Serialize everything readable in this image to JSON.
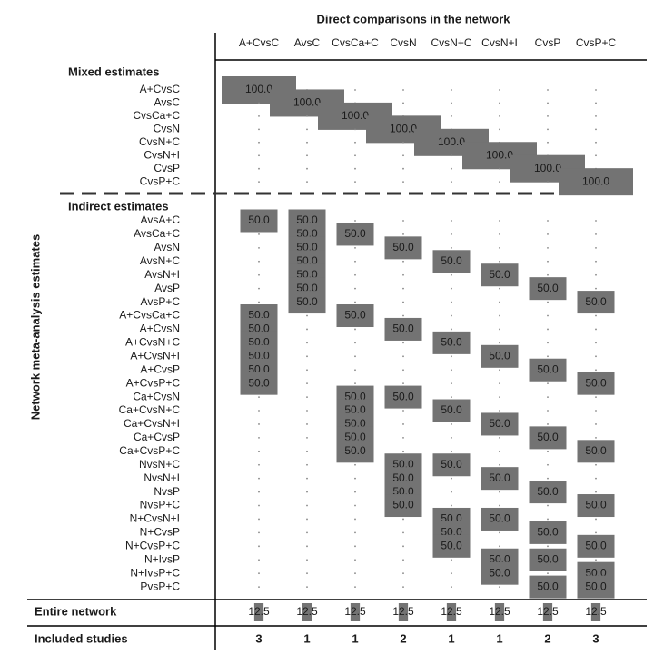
{
  "chart_data": {
    "type": "matrix",
    "title": "Direct comparisons in the network",
    "y_label": "Network meta-analysis estimates",
    "color": "#737373",
    "columns": [
      "A+CvsC",
      "AvsC",
      "CvsCa+C",
      "CvsN",
      "CvsN+C",
      "CvsN+I",
      "CvsP",
      "CvsP+C"
    ],
    "groups": [
      {
        "name": "Mixed estimates",
        "rows": [
          {
            "label": "A+CvsC",
            "values": [
              100,
              0,
              0,
              0,
              0,
              0,
              0,
              0
            ],
            "value_labels": [
              "100.0",
              null,
              null,
              null,
              null,
              null,
              null,
              null
            ]
          },
          {
            "label": "AvsC",
            "values": [
              0,
              100,
              0,
              0,
              0,
              0,
              0,
              0
            ],
            "value_labels": [
              null,
              "100.0",
              null,
              null,
              null,
              null,
              null,
              null
            ]
          },
          {
            "label": "CvsCa+C",
            "values": [
              0,
              0,
              100,
              0,
              0,
              0,
              0,
              0
            ],
            "value_labels": [
              null,
              null,
              "100.0",
              null,
              null,
              null,
              null,
              null
            ]
          },
          {
            "label": "CvsN",
            "values": [
              0,
              0,
              0,
              100,
              0,
              0,
              0,
              0
            ],
            "value_labels": [
              null,
              null,
              null,
              "100.0",
              null,
              null,
              null,
              null
            ]
          },
          {
            "label": "CvsN+C",
            "values": [
              0,
              0,
              0,
              0,
              100,
              0,
              0,
              0
            ],
            "value_labels": [
              null,
              null,
              null,
              null,
              "100.0",
              null,
              null,
              null
            ]
          },
          {
            "label": "CvsN+I",
            "values": [
              0,
              0,
              0,
              0,
              0,
              100,
              0,
              0
            ],
            "value_labels": [
              null,
              null,
              null,
              null,
              null,
              "100.0",
              null,
              null
            ]
          },
          {
            "label": "CvsP",
            "values": [
              0,
              0,
              0,
              0,
              0,
              0,
              100,
              0
            ],
            "value_labels": [
              null,
              null,
              null,
              null,
              null,
              null,
              "100.0",
              null
            ]
          },
          {
            "label": "CvsP+C",
            "values": [
              0,
              0,
              0,
              0,
              0,
              0,
              0,
              100
            ],
            "value_labels": [
              null,
              null,
              null,
              null,
              null,
              null,
              null,
              "100.0"
            ]
          }
        ]
      },
      {
        "name": "Indirect estimates",
        "rows": [
          {
            "label": "AvsA+C",
            "values": [
              50,
              50,
              0,
              0,
              0,
              0,
              0,
              0
            ],
            "value_labels": [
              "50.0",
              "50.0",
              null,
              null,
              null,
              null,
              null,
              null
            ]
          },
          {
            "label": "AvsCa+C",
            "values": [
              0,
              50,
              50,
              0,
              0,
              0,
              0,
              0
            ],
            "value_labels": [
              null,
              "50.0",
              "50.0",
              null,
              null,
              null,
              null,
              null
            ]
          },
          {
            "label": "AvsN",
            "values": [
              0,
              50,
              0,
              50,
              0,
              0,
              0,
              0
            ],
            "value_labels": [
              null,
              "50.0",
              null,
              "50.0",
              null,
              null,
              null,
              null
            ]
          },
          {
            "label": "AvsN+C",
            "values": [
              0,
              50,
              0,
              0,
              50,
              0,
              0,
              0
            ],
            "value_labels": [
              null,
              "50.0",
              null,
              null,
              "50.0",
              null,
              null,
              null
            ]
          },
          {
            "label": "AvsN+I",
            "values": [
              0,
              50,
              0,
              0,
              0,
              50,
              0,
              0
            ],
            "value_labels": [
              null,
              "50.0",
              null,
              null,
              null,
              "50.0",
              null,
              null
            ]
          },
          {
            "label": "AvsP",
            "values": [
              0,
              50,
              0,
              0,
              0,
              0,
              50,
              0
            ],
            "value_labels": [
              null,
              "50.0",
              null,
              null,
              null,
              null,
              "50.0",
              null
            ]
          },
          {
            "label": "AvsP+C",
            "values": [
              0,
              50,
              0,
              0,
              0,
              0,
              0,
              50
            ],
            "value_labels": [
              null,
              "50.0",
              null,
              null,
              null,
              null,
              null,
              "50.0"
            ]
          },
          {
            "label": "A+CvsCa+C",
            "values": [
              50,
              0,
              50,
              0,
              0,
              0,
              0,
              0
            ],
            "value_labels": [
              "50.0",
              null,
              "50.0",
              null,
              null,
              null,
              null,
              null
            ]
          },
          {
            "label": "A+CvsN",
            "values": [
              50,
              0,
              0,
              50,
              0,
              0,
              0,
              0
            ],
            "value_labels": [
              "50.0",
              null,
              null,
              "50.0",
              null,
              null,
              null,
              null
            ]
          },
          {
            "label": "A+CvsN+C",
            "values": [
              50,
              0,
              0,
              0,
              50,
              0,
              0,
              0
            ],
            "value_labels": [
              "50.0",
              null,
              null,
              null,
              "50.0",
              null,
              null,
              null
            ]
          },
          {
            "label": "A+CvsN+I",
            "values": [
              50,
              0,
              0,
              0,
              0,
              50,
              0,
              0
            ],
            "value_labels": [
              "50.0",
              null,
              null,
              null,
              null,
              "50.0",
              null,
              null
            ]
          },
          {
            "label": "A+CvsP",
            "values": [
              50,
              0,
              0,
              0,
              0,
              0,
              50,
              0
            ],
            "value_labels": [
              "50.0",
              null,
              null,
              null,
              null,
              null,
              "50.0",
              null
            ]
          },
          {
            "label": "A+CvsP+C",
            "values": [
              50,
              0,
              0,
              0,
              0,
              0,
              0,
              50
            ],
            "value_labels": [
              "50.0",
              null,
              null,
              null,
              null,
              null,
              null,
              "50.0"
            ]
          },
          {
            "label": "Ca+CvsN",
            "values": [
              0,
              0,
              50,
              50,
              0,
              0,
              0,
              0
            ],
            "value_labels": [
              null,
              null,
              "50.0",
              "50.0",
              null,
              null,
              null,
              null
            ]
          },
          {
            "label": "Ca+CvsN+C",
            "values": [
              0,
              0,
              50,
              0,
              50,
              0,
              0,
              0
            ],
            "value_labels": [
              null,
              null,
              "50.0",
              null,
              "50.0",
              null,
              null,
              null
            ]
          },
          {
            "label": "Ca+CvsN+I",
            "values": [
              0,
              0,
              50,
              0,
              0,
              50,
              0,
              0
            ],
            "value_labels": [
              null,
              null,
              "50.0",
              null,
              null,
              "50.0",
              null,
              null
            ]
          },
          {
            "label": "Ca+CvsP",
            "values": [
              0,
              0,
              50,
              0,
              0,
              0,
              50,
              0
            ],
            "value_labels": [
              null,
              null,
              "50.0",
              null,
              null,
              null,
              "50.0",
              null
            ]
          },
          {
            "label": "Ca+CvsP+C",
            "values": [
              0,
              0,
              50,
              0,
              0,
              0,
              0,
              50
            ],
            "value_labels": [
              null,
              null,
              "50.0",
              null,
              null,
              null,
              null,
              "50.0"
            ]
          },
          {
            "label": "NvsN+C",
            "values": [
              0,
              0,
              0,
              50,
              50,
              0,
              0,
              0
            ],
            "value_labels": [
              null,
              null,
              null,
              "50.0",
              "50.0",
              null,
              null,
              null
            ]
          },
          {
            "label": "NvsN+I",
            "values": [
              0,
              0,
              0,
              50,
              0,
              50,
              0,
              0
            ],
            "value_labels": [
              null,
              null,
              null,
              "50.0",
              null,
              "50.0",
              null,
              null
            ]
          },
          {
            "label": "NvsP",
            "values": [
              0,
              0,
              0,
              50,
              0,
              0,
              50,
              0
            ],
            "value_labels": [
              null,
              null,
              null,
              "50.0",
              null,
              null,
              "50.0",
              null
            ]
          },
          {
            "label": "NvsP+C",
            "values": [
              0,
              0,
              0,
              50,
              0,
              0,
              0,
              50
            ],
            "value_labels": [
              null,
              null,
              null,
              "50.0",
              null,
              null,
              null,
              "50.0"
            ]
          },
          {
            "label": "N+CvsN+I",
            "values": [
              0,
              0,
              0,
              0,
              50,
              50,
              0,
              0
            ],
            "value_labels": [
              null,
              null,
              null,
              null,
              "50.0",
              "50.0",
              null,
              null
            ]
          },
          {
            "label": "N+CvsP",
            "values": [
              0,
              0,
              0,
              0,
              50,
              0,
              50,
              0
            ],
            "value_labels": [
              null,
              null,
              null,
              null,
              "50.0",
              null,
              "50.0",
              null
            ]
          },
          {
            "label": "N+CvsP+C",
            "values": [
              0,
              0,
              0,
              0,
              50,
              0,
              0,
              50
            ],
            "value_labels": [
              null,
              null,
              null,
              null,
              "50.0",
              null,
              null,
              "50.0"
            ]
          },
          {
            "label": "N+IvsP",
            "values": [
              0,
              0,
              0,
              0,
              0,
              50,
              50,
              0
            ],
            "value_labels": [
              null,
              null,
              null,
              null,
              null,
              "50.0",
              "50.0",
              null
            ]
          },
          {
            "label": "N+IvsP+C",
            "values": [
              0,
              0,
              0,
              0,
              0,
              50,
              0,
              50
            ],
            "value_labels": [
              null,
              null,
              null,
              null,
              null,
              "50.0",
              null,
              "50.0"
            ]
          },
          {
            "label": "PvsP+C",
            "values": [
              0,
              0,
              0,
              0,
              0,
              0,
              50,
              50
            ],
            "value_labels": [
              null,
              null,
              null,
              null,
              null,
              null,
              "50.0",
              "50.0"
            ]
          }
        ]
      }
    ],
    "totals": {
      "label": "Entire network",
      "values": [
        12.5,
        12.5,
        12.5,
        12.5,
        12.5,
        12.5,
        12.5,
        12.5
      ]
    },
    "studies": {
      "label": "Included studies",
      "values": [
        3,
        1,
        1,
        2,
        1,
        1,
        2,
        3
      ]
    }
  }
}
